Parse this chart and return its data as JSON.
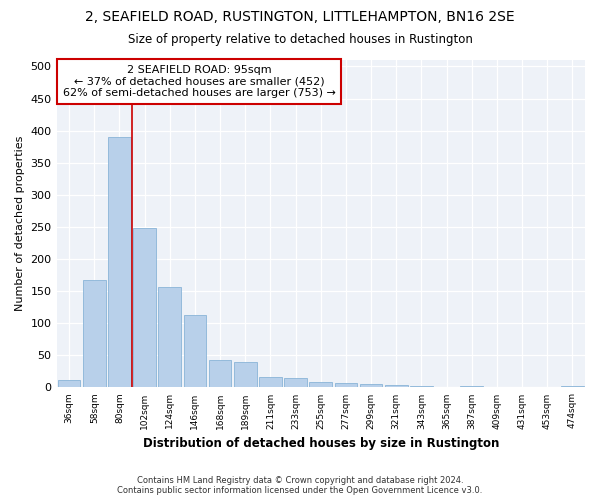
{
  "title1": "2, SEAFIELD ROAD, RUSTINGTON, LITTLEHAMPTON, BN16 2SE",
  "title2": "Size of property relative to detached houses in Rustington",
  "xlabel": "Distribution of detached houses by size in Rustington",
  "ylabel": "Number of detached properties",
  "categories": [
    "36sqm",
    "58sqm",
    "80sqm",
    "102sqm",
    "124sqm",
    "146sqm",
    "168sqm",
    "189sqm",
    "211sqm",
    "233sqm",
    "255sqm",
    "277sqm",
    "299sqm",
    "321sqm",
    "343sqm",
    "365sqm",
    "387sqm",
    "409sqm",
    "431sqm",
    "453sqm",
    "474sqm"
  ],
  "values": [
    11,
    167,
    390,
    248,
    156,
    113,
    43,
    40,
    17,
    14,
    8,
    7,
    5,
    4,
    3,
    0,
    2,
    0,
    0,
    0,
    3
  ],
  "bar_color": "#b8d0ea",
  "bar_edge_color": "#8ab4d8",
  "annotation_title": "2 SEAFIELD ROAD: 95sqm",
  "annotation_line1": "← 37% of detached houses are smaller (452)",
  "annotation_line2": "62% of semi-detached houses are larger (753) →",
  "annotation_box_color": "#ffffff",
  "annotation_box_edge_color": "#cc0000",
  "line_color": "#cc0000",
  "footer1": "Contains HM Land Registry data © Crown copyright and database right 2024.",
  "footer2": "Contains public sector information licensed under the Open Government Licence v3.0.",
  "ylim": [
    0,
    510
  ],
  "yticks": [
    0,
    50,
    100,
    150,
    200,
    250,
    300,
    350,
    400,
    450,
    500
  ],
  "background_color": "#eef2f8",
  "grid_color": "#ffffff"
}
